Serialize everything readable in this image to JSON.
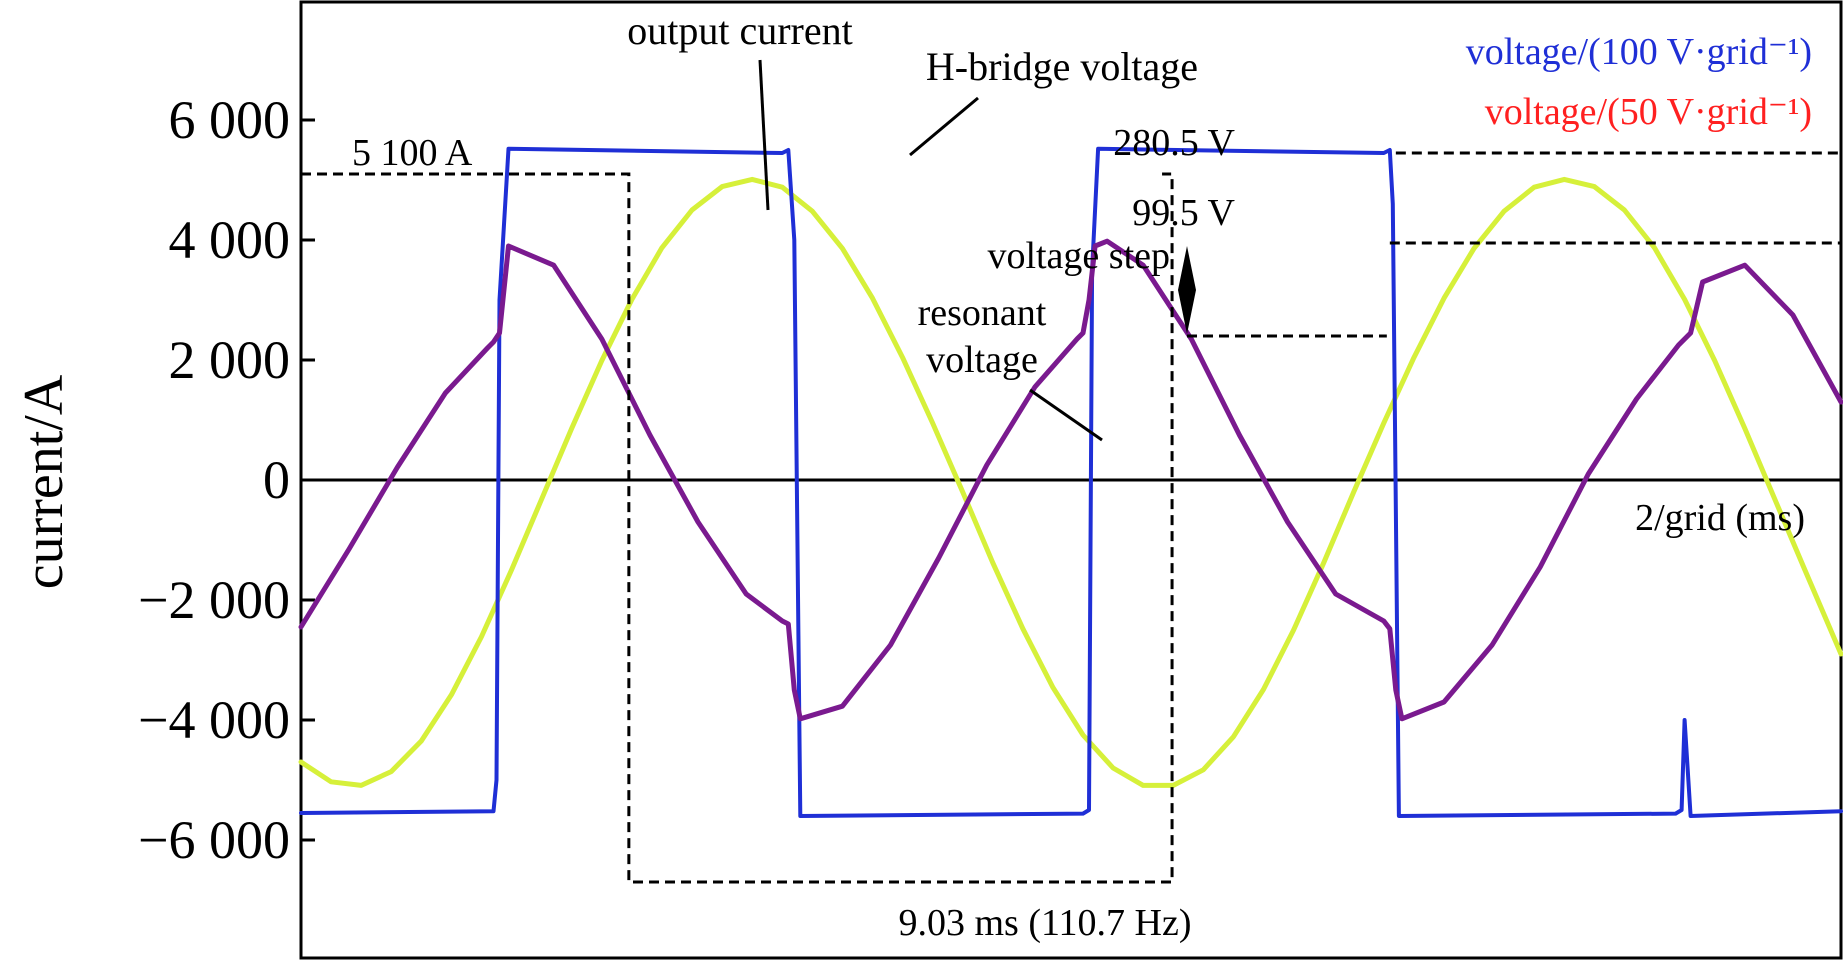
{
  "chart_data": {
    "type": "line",
    "ylabel": "current/A",
    "yticks": [
      {
        "value": 6000,
        "label": "6 000"
      },
      {
        "value": 4000,
        "label": "4 000"
      },
      {
        "value": 2000,
        "label": "2 000"
      },
      {
        "value": 0,
        "label": "0"
      },
      {
        "value": -2000,
        "label": "−2 000"
      },
      {
        "value": -4000,
        "label": "−4 000"
      },
      {
        "value": -6000,
        "label": "−6 000"
      }
    ],
    "ylim": [
      -7900,
      8000
    ],
    "xlim": [
      0,
      25.6
    ],
    "x_unit": "ms",
    "grid": false,
    "legend": [
      {
        "text": "voltage/(100 V·grid⁻¹)",
        "color": "#1f2fd6"
      },
      {
        "text": "voltage/(50 V·grid⁻¹)",
        "color": "#ff2020"
      }
    ],
    "series": [
      {
        "name": "output current",
        "color": "#d6f03a",
        "x": [
          0.0,
          0.5,
          1.0,
          1.5,
          2.0,
          2.5,
          3.0,
          3.5,
          4.0,
          4.5,
          5.0,
          5.5,
          6.0,
          6.5,
          7.0,
          7.5,
          8.0,
          8.5,
          9.0,
          9.5,
          10.0,
          10.5,
          11.0,
          11.5,
          12.0,
          12.5,
          13.0,
          13.5,
          14.0,
          14.5,
          15.0,
          15.5,
          16.0,
          16.5,
          17.0,
          17.5,
          18.0,
          18.5,
          19.0,
          19.5,
          20.0,
          20.5,
          21.0,
          21.5,
          22.0,
          22.5,
          23.0,
          23.5,
          24.0,
          24.5,
          25.0,
          25.6
        ],
        "values": [
          -4700,
          -5030,
          -5090,
          -4860,
          -4350,
          -3580,
          -2610,
          -1500,
          -320,
          860,
          1990,
          3010,
          3870,
          4500,
          4890,
          5010,
          4880,
          4480,
          3860,
          3030,
          2040,
          950,
          -200,
          -1380,
          -2480,
          -3460,
          -4250,
          -4800,
          -5090,
          -5090,
          -4830,
          -4280,
          -3490,
          -2500,
          -1380,
          -200,
          950,
          2040,
          3030,
          3860,
          4480,
          4880,
          5010,
          4890,
          4500,
          3870,
          3010,
          1990,
          860,
          -320,
          -1500,
          -2900
        ]
      },
      {
        "name": "H-bridge voltage",
        "color": "#1f2fd6",
        "x": [
          0.0,
          3.2,
          3.25,
          3.3,
          3.45,
          8.0,
          8.1,
          8.2,
          8.3,
          13.0,
          13.1,
          13.15,
          13.25,
          18.0,
          18.1,
          18.15,
          18.25,
          22.85,
          22.95,
          23.0,
          23.1,
          25.6
        ],
        "values": [
          -5550,
          -5520,
          -5000,
          3000,
          5520,
          5450,
          5500,
          4000,
          -5600,
          -5560,
          -5500,
          3500,
          5520,
          5450,
          5500,
          4600,
          -5600,
          -5560,
          -5500,
          -4000,
          -5600,
          -5520
        ]
      },
      {
        "name": "resonant voltage",
        "color": "#7a1a8f",
        "x": [
          0.0,
          0.8,
          1.6,
          2.4,
          3.1,
          3.2,
          3.3,
          3.45,
          4.2,
          5.0,
          5.8,
          6.6,
          7.4,
          8.0,
          8.1,
          8.2,
          8.3,
          9.0,
          9.8,
          10.6,
          11.4,
          12.2,
          12.9,
          13.0,
          13.1,
          13.2,
          13.4,
          14.0,
          14.8,
          15.6,
          16.4,
          17.2,
          18.0,
          18.1,
          18.2,
          18.3,
          19.0,
          19.8,
          20.6,
          21.4,
          22.2,
          22.9,
          23.0,
          23.1,
          23.3,
          24.0,
          24.8,
          25.6
        ],
        "values": [
          -2450,
          -1150,
          210,
          1450,
          2200,
          2300,
          2450,
          3900,
          3580,
          2350,
          750,
          -700,
          -1900,
          -2350,
          -2400,
          -3500,
          -3980,
          -3770,
          -2750,
          -1300,
          250,
          1550,
          2350,
          2450,
          3000,
          3900,
          3980,
          3580,
          2350,
          750,
          -700,
          -1900,
          -2350,
          -2480,
          -3500,
          -3980,
          -3700,
          -2750,
          -1450,
          100,
          1350,
          2250,
          2350,
          2450,
          3300,
          3580,
          2750,
          1300
        ]
      }
    ],
    "annotations": {
      "peak_current": "5 100 A",
      "h_bridge_peak": "280.5 V",
      "resonant_step": "99.5 V",
      "voltage_step": "voltage step",
      "resonant_voltage_line1": "resonant",
      "resonant_voltage_line2": "voltage",
      "output_current": "output current",
      "h_bridge_voltage": "H-bridge voltage",
      "time_scale": "2/grid (ms)",
      "period": "9.03 ms (110.7 Hz)"
    },
    "reference_values": {
      "peak_current_a": 5100,
      "h_bridge_level_a": 5450,
      "resonant_step_top_a": 3950,
      "resonant_step_bottom_a": 2400,
      "period_start_ms": 5.45,
      "period_end_ms": 14.48,
      "period_bracket_bottom_a": -6700
    }
  }
}
